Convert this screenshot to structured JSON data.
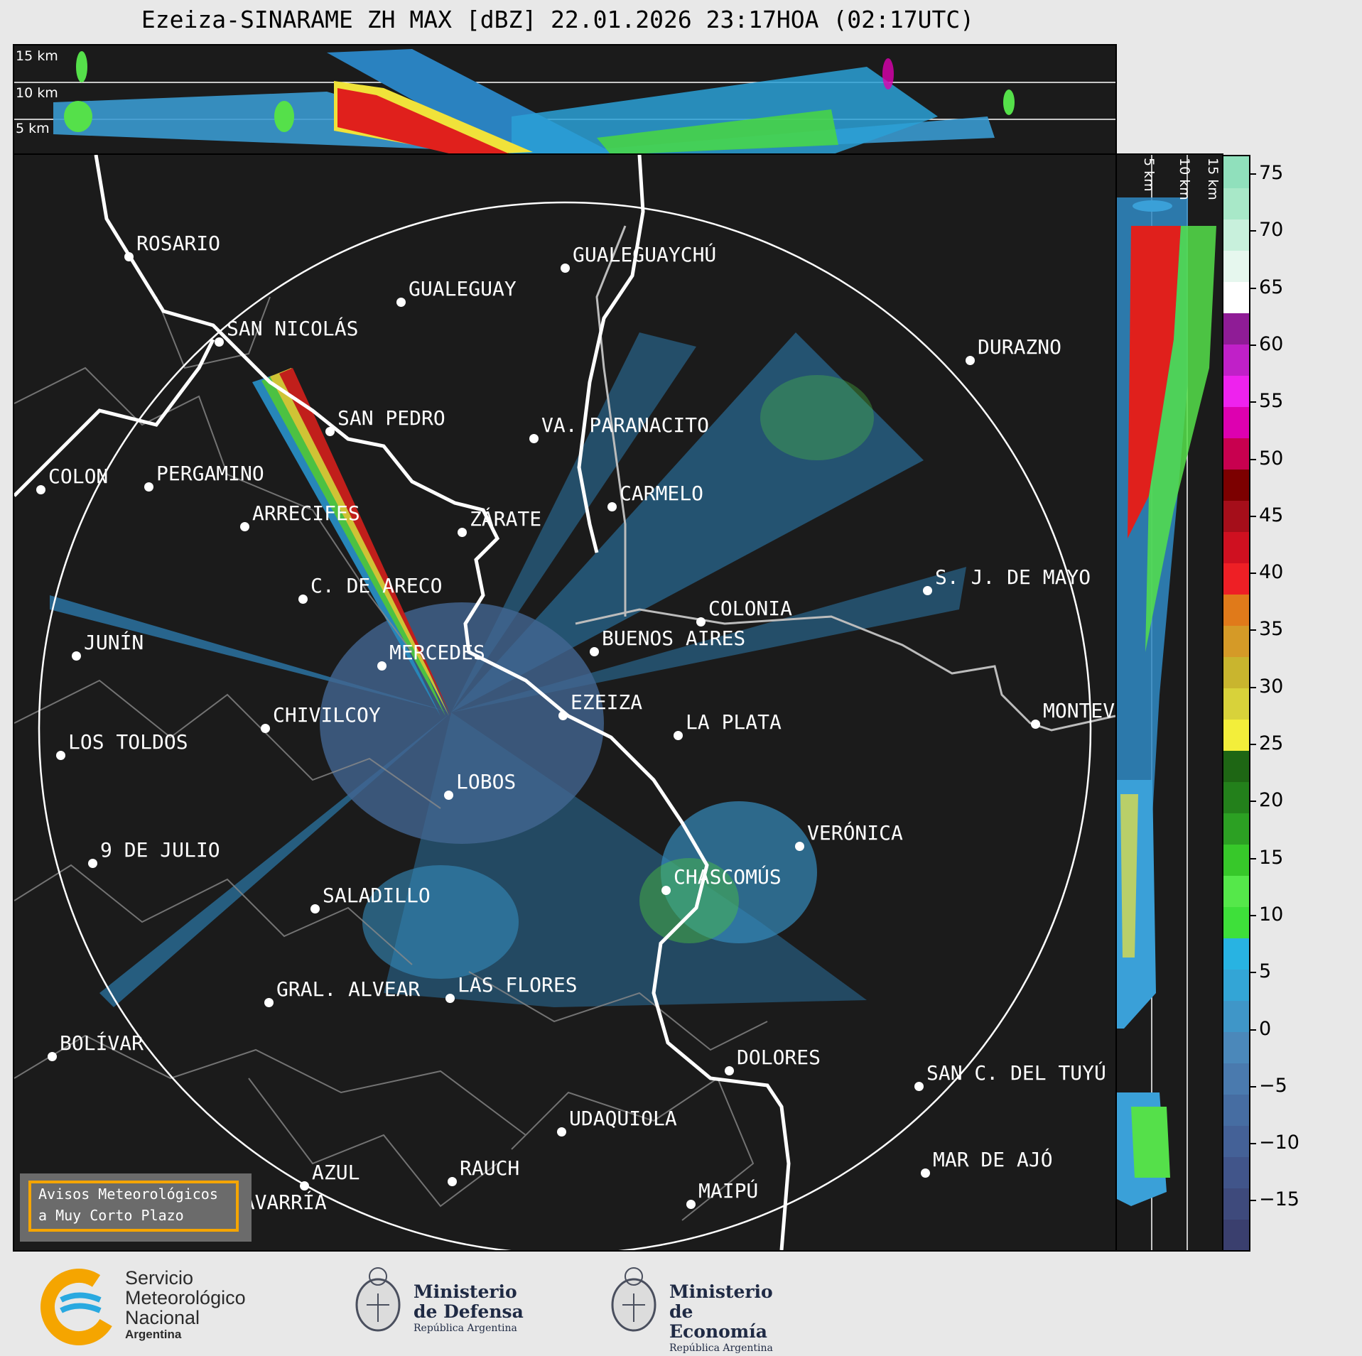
{
  "title": "Ezeiza-SINARAME ZH MAX [dBZ] 22.01.2026 23:17HOA (02:17UTC)",
  "top_panel": {
    "height_labels": [
      "15 km",
      "10 km",
      "5 km"
    ]
  },
  "side_panel": {
    "height_labels": [
      "5 km",
      "10 km",
      "15 km"
    ]
  },
  "colorbar": {
    "ticks": [
      "75",
      "70",
      "65",
      "60",
      "55",
      "50",
      "45",
      "40",
      "35",
      "30",
      "25",
      "20",
      "15",
      "10",
      "5",
      "0",
      "−5",
      "−10",
      "−15"
    ],
    "colors": [
      "#3a3f6e",
      "#3e4a7c",
      "#41558a",
      "#446197",
      "#466da2",
      "#4a7aae",
      "#4b88ba",
      "#3f96c8",
      "#33a5d6",
      "#28b3e2",
      "#3ee03a",
      "#55e84a",
      "#37c82a",
      "#2ca023",
      "#23801b",
      "#1e6614",
      "#f3ee3a",
      "#d8d23a",
      "#c9b52e",
      "#d59a27",
      "#e07a1a",
      "#ee1f25",
      "#cf1020",
      "#a50e1a",
      "#7c0000",
      "#c8004f",
      "#dd00b0",
      "#ee22ee",
      "#c020c8",
      "#8f1c96",
      "#ffffff",
      "#e6f7ee",
      "#c8f0dc",
      "#a8e8c8",
      "#90e0bc"
    ]
  },
  "cities": [
    {
      "name": "ROSARIO"
    },
    {
      "name": "GUALEGUAYCHÚ"
    },
    {
      "name": "GUALEGUAY"
    },
    {
      "name": "SAN NICOLÁS"
    },
    {
      "name": "DURAZNO"
    },
    {
      "name": "SAN PEDRO"
    },
    {
      "name": "VA. PARANACITO"
    },
    {
      "name": "COLON"
    },
    {
      "name": "PERGAMINO"
    },
    {
      "name": "CARMELO"
    },
    {
      "name": "ARRECIFES"
    },
    {
      "name": "ZÁRATE"
    },
    {
      "name": "S. J. DE MAYO"
    },
    {
      "name": "C. DE ARECO"
    },
    {
      "name": "COLONIA"
    },
    {
      "name": "JUNÍN"
    },
    {
      "name": "BUENOS AIRES"
    },
    {
      "name": "MERCEDES"
    },
    {
      "name": "EZEIZA"
    },
    {
      "name": "MONTEV"
    },
    {
      "name": "CHIVILCOY"
    },
    {
      "name": "LA PLATA"
    },
    {
      "name": "LOS TOLDOS"
    },
    {
      "name": "LOBOS"
    },
    {
      "name": "VERÓNICA"
    },
    {
      "name": "9 DE JULIO"
    },
    {
      "name": "CHASCOMÚS"
    },
    {
      "name": "SALADILLO"
    },
    {
      "name": "GRAL. ALVEAR"
    },
    {
      "name": "LAS FLORES"
    },
    {
      "name": "BOLÍVAR"
    },
    {
      "name": "DOLORES"
    },
    {
      "name": "SAN C. DEL TUYÚ"
    },
    {
      "name": "UDAQUIOLA"
    },
    {
      "name": "MAR DE AJÓ"
    },
    {
      "name": "RAUCH"
    },
    {
      "name": "AZUL"
    },
    {
      "name": "OLAVARRÍA"
    },
    {
      "name": "MAIPÚ"
    }
  ],
  "avisos": {
    "line1": "Avisos Meteorológicos",
    "line2": "a Muy Corto Plazo"
  },
  "logos": {
    "smn": {
      "line1": "Servicio",
      "line2": "Meteorológico",
      "line3": "Nacional",
      "line4": "Argentina"
    },
    "defensa": {
      "line1": "Ministerio",
      "line2": "de Defensa",
      "line3": "República Argentina"
    },
    "economia": {
      "line1": "Ministerio",
      "line2": "de Economía",
      "line3": "República Argentina"
    }
  }
}
